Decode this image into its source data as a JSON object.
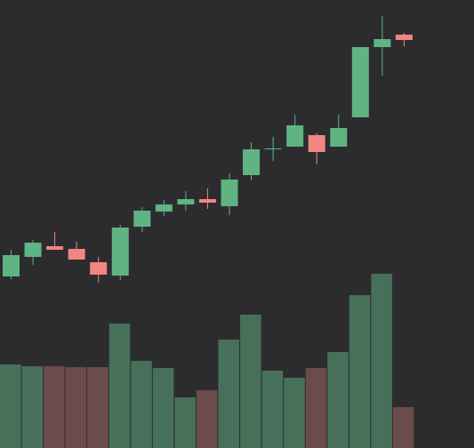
{
  "chart_data": {
    "type": "candlestick",
    "open": [
      193,
      215,
      227,
      224,
      209,
      194,
      249,
      266,
      274,
      280,
      272,
      307,
      336,
      339,
      352,
      339,
      372,
      451,
      465
    ],
    "high": [
      223,
      234,
      243,
      232,
      215,
      251,
      271,
      279,
      289,
      292,
      309,
      344,
      350,
      375,
      354,
      375,
      451,
      486,
      467
    ],
    "low": [
      190,
      206,
      223,
      212,
      186,
      189,
      243,
      261,
      267,
      269,
      262,
      301,
      323,
      339,
      319,
      339,
      372,
      419,
      452
    ],
    "close": [
      217,
      231,
      223,
      212,
      195,
      248,
      267,
      274,
      280,
      276,
      302,
      336,
      337,
      363,
      333,
      360,
      451,
      460,
      459
    ],
    "volume": [
      94,
      92,
      92,
      91,
      91,
      140,
      98,
      90,
      57,
      65,
      122,
      150,
      87,
      79,
      90,
      108,
      172,
      196,
      46
    ],
    "up_color": "#5fb482",
    "down_color": "#ef8682",
    "volume_up_color": "#46705a",
    "volume_down_color": "#6b4b4c"
  }
}
